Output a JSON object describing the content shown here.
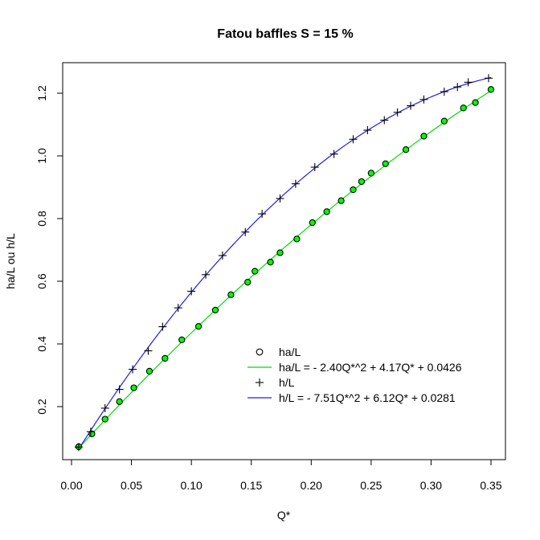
{
  "chart_data": {
    "type": "scatter",
    "title": "Fatou baffles S = 15 %",
    "xlabel": "Q*",
    "ylabel": "ha/L ou h/L",
    "xlim": [
      0.0,
      0.35
    ],
    "ylim": [
      0.05,
      1.27
    ],
    "xticks": [
      "0.00",
      "0.05",
      "0.10",
      "0.15",
      "0.20",
      "0.25",
      "0.30",
      "0.35"
    ],
    "yticks": [
      "0.2",
      "0.4",
      "0.6",
      "0.8",
      "1.0",
      "1.2"
    ],
    "grid": false,
    "legend_position": "bottom-right",
    "series": [
      {
        "name": "ha/L",
        "kind": "points",
        "marker": "circle",
        "color": "#000000",
        "fill": "#00ff00",
        "x": [
          0.006,
          0.017,
          0.028,
          0.04,
          0.052,
          0.065,
          0.078,
          0.092,
          0.106,
          0.12,
          0.133,
          0.147,
          0.153,
          0.166,
          0.174,
          0.188,
          0.201,
          0.213,
          0.225,
          0.235,
          0.242,
          0.25,
          0.262,
          0.279,
          0.294,
          0.311,
          0.327,
          0.337,
          0.35
        ],
        "y": [
          0.072,
          0.113,
          0.16,
          0.216,
          0.26,
          0.313,
          0.354,
          0.413,
          0.456,
          0.508,
          0.557,
          0.597,
          0.632,
          0.661,
          0.691,
          0.735,
          0.787,
          0.822,
          0.857,
          0.892,
          0.918,
          0.945,
          0.975,
          1.02,
          1.063,
          1.111,
          1.153,
          1.17,
          1.212
        ]
      },
      {
        "name": "ha/L = - 2.40Q*^2 + 4.17Q* + 0.0426",
        "kind": "fit",
        "color": "#00dd00",
        "coefficients": {
          "a": -2.4,
          "b": 4.17,
          "c": 0.0426
        },
        "x_range": [
          0.006,
          0.35
        ]
      },
      {
        "name": "h/L",
        "kind": "points",
        "marker": "plus",
        "color": "#000000",
        "x": [
          0.006,
          0.016,
          0.028,
          0.04,
          0.051,
          0.064,
          0.076,
          0.089,
          0.1,
          0.112,
          0.126,
          0.145,
          0.159,
          0.174,
          0.187,
          0.203,
          0.219,
          0.235,
          0.247,
          0.261,
          0.272,
          0.283,
          0.294,
          0.311,
          0.322,
          0.331,
          0.348
        ],
        "y": [
          0.071,
          0.12,
          0.195,
          0.255,
          0.319,
          0.378,
          0.455,
          0.515,
          0.568,
          0.621,
          0.682,
          0.757,
          0.815,
          0.864,
          0.911,
          0.964,
          1.006,
          1.053,
          1.082,
          1.114,
          1.139,
          1.16,
          1.18,
          1.205,
          1.22,
          1.235,
          1.248
        ]
      },
      {
        "name": "h/L = - 7.51Q*^2 + 6.12Q* + 0.0281",
        "kind": "fit",
        "color": "#2020e0",
        "coefficients": {
          "a": -7.51,
          "b": 6.12,
          "c": 0.0281
        },
        "x_range": [
          0.006,
          0.35
        ]
      }
    ]
  }
}
